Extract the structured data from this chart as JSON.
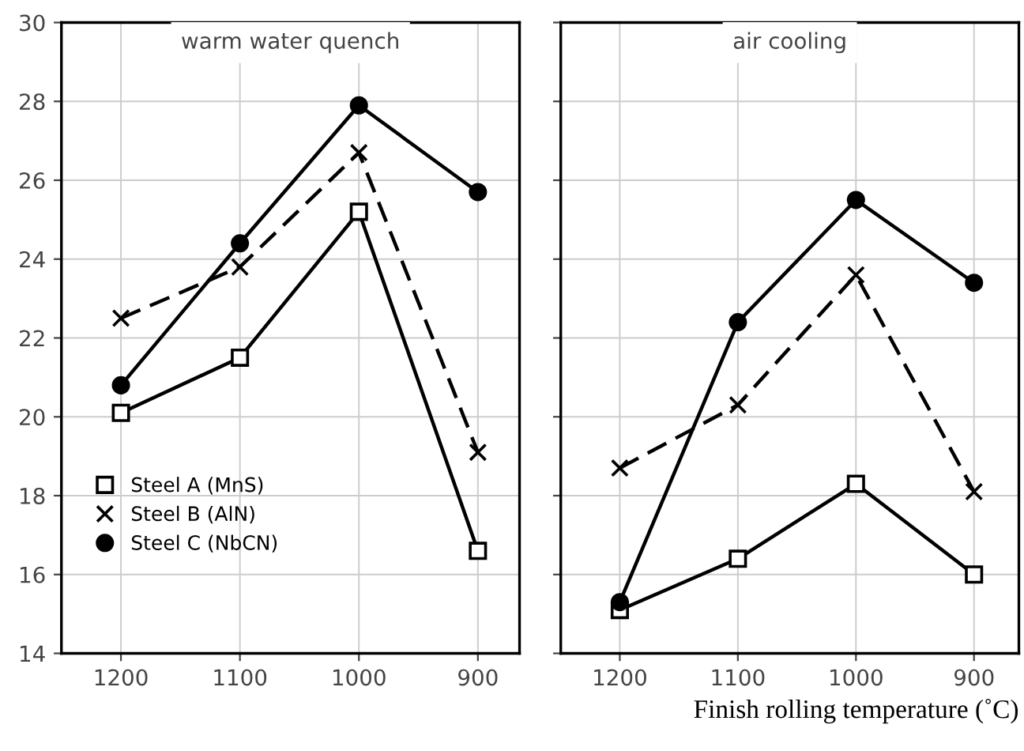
{
  "chart_data": [
    {
      "type": "line",
      "title": "warm water quench",
      "x": [
        1200,
        1100,
        1000,
        900
      ],
      "xlim": [
        1250,
        865
      ],
      "xticks": [
        1200,
        1100,
        1000,
        900
      ],
      "ylim": [
        14,
        30
      ],
      "yticks": [
        14,
        16,
        18,
        20,
        22,
        24,
        26,
        28,
        30
      ],
      "grid": true,
      "legend": "bottom left",
      "series": [
        {
          "name": "Steel A (MnS)",
          "color": "#000000",
          "marker": "square",
          "line_style": "solid",
          "values": [
            20.1,
            21.5,
            25.2,
            16.6
          ]
        },
        {
          "name": "Steel B (AlN)",
          "color": "#000000",
          "marker": "cross",
          "line_style": "dashed",
          "values": [
            22.5,
            23.8,
            26.7,
            19.1
          ]
        },
        {
          "name": "Steel C (NbCN)",
          "color": "#000000",
          "marker": "circle",
          "line_style": "solid",
          "values": [
            20.8,
            24.4,
            27.9,
            25.7
          ]
        }
      ]
    },
    {
      "type": "line",
      "title": "air cooling",
      "xlabel": "Finish rolling temperature (˚C)",
      "x": [
        1200,
        1100,
        1000,
        900
      ],
      "xlim": [
        1250,
        862
      ],
      "xticks": [
        1200,
        1100,
        1000,
        900
      ],
      "ylim": [
        14,
        30
      ],
      "yticks": [
        14,
        16,
        18,
        20,
        22,
        24,
        26,
        28,
        30
      ],
      "grid": true,
      "tick_labels": "x",
      "series": [
        {
          "color": "#000000",
          "marker": "square",
          "line_style": "solid",
          "values": [
            15.1,
            16.4,
            18.3,
            16.0
          ]
        },
        {
          "color": "#000000",
          "marker": "cross",
          "line_style": "dashed",
          "values": [
            18.7,
            20.3,
            23.6,
            18.1
          ]
        },
        {
          "color": "#000000",
          "marker": "circle",
          "line_style": "solid",
          "values": [
            15.3,
            22.4,
            25.5,
            23.4
          ]
        }
      ]
    }
  ]
}
